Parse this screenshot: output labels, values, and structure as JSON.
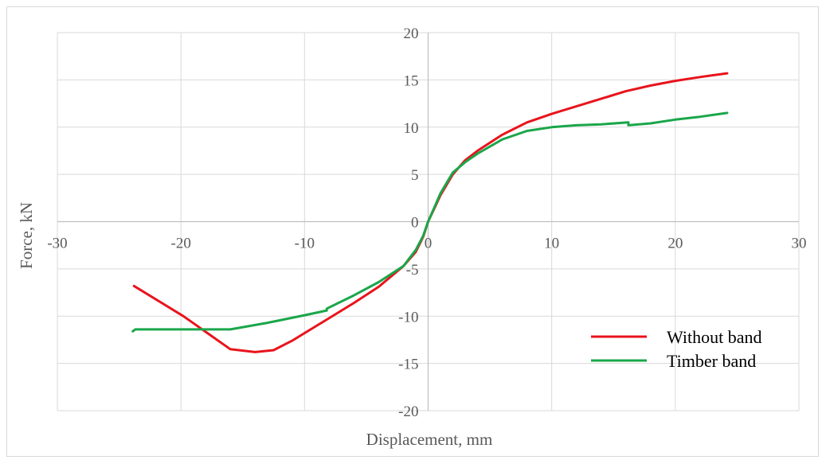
{
  "chart_data": {
    "type": "line",
    "xlabel": "Displacement, mm",
    "ylabel": "Force, kN",
    "xlim": [
      -30,
      30
    ],
    "ylim": [
      -20,
      20
    ],
    "xticks": [
      -30,
      -20,
      -10,
      0,
      10,
      20,
      30
    ],
    "yticks": [
      -20,
      -15,
      -10,
      -5,
      0,
      5,
      10,
      15,
      20
    ],
    "grid": true,
    "legend_position": "bottom-right",
    "series": [
      {
        "name": "Without band",
        "color": "#e8141c",
        "points": [
          [
            -23.8,
            -6.8
          ],
          [
            -19.8,
            -10.0
          ],
          [
            -16.0,
            -13.5
          ],
          [
            -14.0,
            -13.8
          ],
          [
            -12.5,
            -13.6
          ],
          [
            -11.0,
            -12.6
          ],
          [
            -8.0,
            -10.2
          ],
          [
            -6.0,
            -8.6
          ],
          [
            -4.0,
            -6.9
          ],
          [
            -2.0,
            -4.7
          ],
          [
            -1.0,
            -3.2
          ],
          [
            -0.4,
            -1.6
          ],
          [
            0.0,
            0.0
          ],
          [
            0.5,
            1.4
          ],
          [
            1.0,
            2.8
          ],
          [
            2.0,
            5.0
          ],
          [
            3.0,
            6.5
          ],
          [
            4.0,
            7.5
          ],
          [
            6.0,
            9.2
          ],
          [
            8.0,
            10.5
          ],
          [
            10.0,
            11.4
          ],
          [
            12.0,
            12.2
          ],
          [
            14.0,
            13.0
          ],
          [
            16.0,
            13.8
          ],
          [
            18.0,
            14.4
          ],
          [
            20.0,
            14.9
          ],
          [
            22.0,
            15.3
          ],
          [
            24.2,
            15.7
          ]
        ]
      },
      {
        "name": "Timber band",
        "color": "#1aa64a",
        "points": [
          [
            -23.9,
            -11.6
          ],
          [
            -23.7,
            -11.4
          ],
          [
            -20.0,
            -11.4
          ],
          [
            -16.0,
            -11.4
          ],
          [
            -13.0,
            -10.7
          ],
          [
            -10.0,
            -9.9
          ],
          [
            -8.2,
            -9.4
          ],
          [
            -8.2,
            -9.2
          ],
          [
            -6.0,
            -7.8
          ],
          [
            -4.0,
            -6.4
          ],
          [
            -2.0,
            -4.7
          ],
          [
            -1.0,
            -3.0
          ],
          [
            -0.4,
            -1.5
          ],
          [
            0.0,
            0.0
          ],
          [
            0.5,
            1.5
          ],
          [
            1.0,
            3.0
          ],
          [
            2.0,
            5.2
          ],
          [
            3.0,
            6.3
          ],
          [
            4.0,
            7.2
          ],
          [
            6.0,
            8.7
          ],
          [
            8.0,
            9.6
          ],
          [
            10.0,
            10.0
          ],
          [
            12.0,
            10.2
          ],
          [
            14.0,
            10.3
          ],
          [
            16.2,
            10.5
          ],
          [
            16.2,
            10.2
          ],
          [
            18.0,
            10.4
          ],
          [
            20.0,
            10.8
          ],
          [
            22.0,
            11.1
          ],
          [
            24.2,
            11.5
          ]
        ]
      }
    ]
  }
}
